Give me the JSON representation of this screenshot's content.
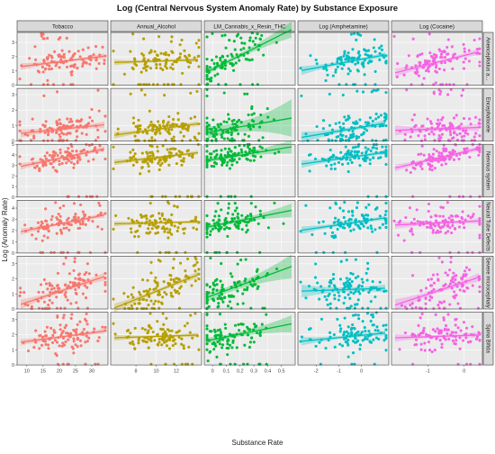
{
  "chart_data": {
    "type": "scatter",
    "title": "Log (Central Nervous System Anomaly Rate) by Substance Exposure",
    "xlabel": "Substance Rate",
    "ylabel": "Log (Anomaly Rate)",
    "grid": true,
    "columns": [
      {
        "name": "Tobacco",
        "color": "#F8766D",
        "xlim": [
          7,
          35
        ],
        "ticks": [
          10,
          15,
          20,
          25,
          30
        ],
        "center": 22
      },
      {
        "name": "Annual_Alcohol",
        "color": "#B79F00",
        "xlim": [
          5.5,
          14.5
        ],
        "ticks": [
          8,
          10,
          12
        ],
        "center": 10.5
      },
      {
        "name": "LM_Cannabis_x_Resin_THC",
        "color": "#00BA38",
        "xlim": [
          -0.06,
          0.6
        ],
        "ticks": [
          0.0,
          0.1,
          0.2,
          0.3,
          0.4,
          0.5
        ],
        "center": 0.12
      },
      {
        "name": "Log (Amphetamine)",
        "color": "#00BFC4",
        "xlim": [
          -2.8,
          1.2
        ],
        "ticks": [
          -2,
          -1,
          0
        ],
        "center": -0.4
      },
      {
        "name": "Log (Cocaine)",
        "color": "#F564E3",
        "xlim": [
          -2.0,
          0.5
        ],
        "ticks": [
          -1,
          0
        ],
        "center": -0.6
      }
    ],
    "rows": [
      {
        "name": "Anencephalus a...",
        "ylim": [
          0,
          3.7
        ],
        "ticks": [
          0,
          1,
          2,
          3
        ],
        "center": 1.7,
        "spread": 0.5,
        "slopes": [
          0.2,
          0.05,
          0.8,
          0.3,
          0.4
        ],
        "bands": [
          0.09,
          0.07,
          0.14,
          0.1,
          0.11
        ]
      },
      {
        "name": "Encephalocele",
        "ylim": [
          0,
          3.4
        ],
        "ticks": [
          0,
          1,
          2,
          3
        ],
        "center": 0.8,
        "spread": 0.45,
        "slopes": [
          0.15,
          0.2,
          0.25,
          0.25,
          0.05
        ],
        "bands": [
          0.1,
          0.08,
          0.3,
          0.12,
          0.12
        ]
      },
      {
        "name": "Nervous system",
        "ylim": [
          0,
          5
        ],
        "ticks": [
          0,
          1,
          2,
          3,
          4,
          5
        ],
        "center": 3.8,
        "spread": 0.45,
        "slopes": [
          0.45,
          0.25,
          0.35,
          0.3,
          0.5
        ],
        "bands": [
          0.12,
          0.1,
          0.16,
          0.12,
          0.12
        ]
      },
      {
        "name": "Neural Tube Defects",
        "ylim": [
          0,
          4.7
        ],
        "ticks": [
          0,
          1,
          2,
          3,
          4
        ],
        "center": 2.7,
        "spread": 0.5,
        "slopes": [
          0.4,
          0.05,
          0.4,
          0.3,
          0.1
        ],
        "bands": [
          0.11,
          0.08,
          0.15,
          0.11,
          0.12
        ]
      },
      {
        "name": "Severe microcephaly",
        "ylim": [
          0,
          3.5
        ],
        "ticks": [
          0,
          1,
          2,
          3
        ],
        "center": 1.3,
        "spread": 0.55,
        "slopes": [
          0.5,
          0.6,
          0.55,
          0.05,
          0.5
        ],
        "bands": [
          0.12,
          0.11,
          0.2,
          0.14,
          0.14
        ]
      },
      {
        "name": "Spina Bifida",
        "ylim": [
          0,
          3.5
        ],
        "ticks": [
          0,
          1,
          2,
          3
        ],
        "center": 1.9,
        "spread": 0.45,
        "slopes": [
          0.2,
          0.05,
          0.3,
          0.15,
          0.05
        ],
        "bands": [
          0.08,
          0.07,
          0.14,
          0.09,
          0.09
        ]
      }
    ]
  }
}
